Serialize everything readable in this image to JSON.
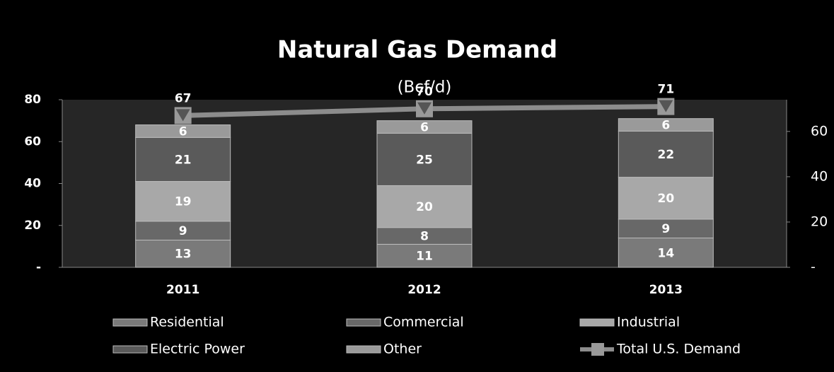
{
  "chart_data": {
    "type": "bar",
    "stacked": true,
    "title": "Natural Gas Demand",
    "subtitle": "(Bcf/d)",
    "categories": [
      "2011",
      "2012",
      "2013"
    ],
    "series": [
      {
        "name": "Residential",
        "color": "#7a7a7a",
        "values": [
          13,
          11,
          14
        ]
      },
      {
        "name": "Commercial",
        "color": "#686868",
        "values": [
          9,
          8,
          9
        ]
      },
      {
        "name": "Industrial",
        "color": "#a8a8a8",
        "values": [
          19,
          20,
          20
        ]
      },
      {
        "name": "Electric Power",
        "color": "#5a5a5a",
        "values": [
          21,
          25,
          22
        ]
      },
      {
        "name": "Other",
        "color": "#9a9a9a",
        "values": [
          6,
          6,
          6
        ]
      },
      {
        "name": "Total U.S. Demand",
        "type": "line",
        "axis": "y2",
        "color": "#8c8c8c",
        "values": [
          67,
          70,
          71
        ]
      }
    ],
    "ylim": [
      0,
      80
    ],
    "yticks": [
      {
        "value": 0,
        "label": "-"
      },
      20,
      40,
      60,
      80
    ],
    "y2lim": [
      0,
      74
    ],
    "y2ticks": [
      {
        "value": 0,
        "label": "-"
      },
      20,
      40,
      60
    ],
    "legend": "bottom"
  }
}
